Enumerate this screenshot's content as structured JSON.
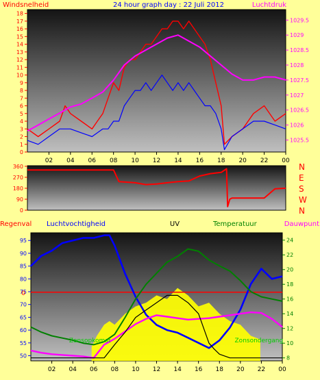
{
  "chart_data": [
    {
      "type": "line",
      "title": "24 hour graph day : 22 Juli 2012",
      "left_label": "Windsnelheid",
      "right_label": "Luchtdruk",
      "x_ticks": [
        "02",
        "04",
        "06",
        "08",
        "10",
        "12",
        "14",
        "16",
        "18",
        "20",
        "22",
        "00"
      ],
      "x_range_hours": [
        0,
        24
      ],
      "y_left_ticks": [
        "0",
        "1",
        "2",
        "3",
        "4",
        "5",
        "6",
        "7",
        "8",
        "9",
        "10",
        "11",
        "12",
        "13",
        "14",
        "15",
        "16",
        "17",
        "18"
      ],
      "y_left_range": [
        0,
        18.5
      ],
      "y_right_ticks": [
        "1025.5",
        "1026",
        "1026.5",
        "1027",
        "1027.5",
        "1028",
        "1028.5",
        "1029",
        "1029.5"
      ],
      "y_right_range": [
        1025.1,
        1029.85
      ],
      "series": [
        {
          "color": "#ff0000",
          "x": [
            0,
            1,
            2,
            3,
            3.5,
            4,
            5,
            6,
            6.5,
            7,
            7.5,
            8,
            8.5,
            9,
            9.5,
            10,
            10.5,
            11,
            11.5,
            12,
            12.5,
            13,
            13.5,
            14,
            14.5,
            15,
            15.5,
            16,
            16.5,
            17,
            17.5,
            18,
            18.3,
            19,
            20,
            21,
            22,
            23,
            24
          ],
          "y": [
            3,
            2,
            3,
            4,
            6,
            5,
            4,
            3,
            4,
            5,
            7,
            9,
            8,
            11,
            12,
            12,
            13,
            14,
            14,
            15,
            16,
            16,
            17,
            17,
            16,
            17,
            16,
            15,
            14,
            12,
            9,
            6,
            1,
            2,
            3,
            5,
            6,
            4,
            5
          ]
        },
        {
          "color": "#0000ff",
          "x": [
            0,
            1,
            2,
            3,
            4,
            5,
            6,
            7,
            7.5,
            8,
            8.5,
            9,
            9.5,
            10,
            10.5,
            11,
            11.5,
            12,
            12.5,
            13,
            13.5,
            14,
            14.5,
            15,
            15.5,
            16,
            16.5,
            17,
            17.5,
            18,
            18.3,
            19,
            20,
            21,
            22,
            23,
            24
          ],
          "y": [
            1.5,
            1,
            2,
            3,
            3,
            2.5,
            2,
            3,
            3,
            4,
            4,
            6,
            7,
            8,
            8,
            9,
            8,
            9,
            10,
            9,
            8,
            9,
            8,
            9,
            8,
            7,
            6,
            6,
            5,
            3,
            0.3,
            2,
            3,
            4,
            4,
            3.5,
            3
          ]
        },
        {
          "color": "#ff00ff",
          "x": [
            0,
            1,
            2,
            3,
            4,
            5,
            6,
            7,
            8,
            9,
            10,
            11,
            12,
            13,
            14,
            15,
            16,
            17,
            18,
            19,
            20,
            21,
            22,
            23,
            24
          ],
          "y": [
            1025.8,
            1026.0,
            1026.2,
            1026.4,
            1026.6,
            1026.7,
            1026.9,
            1027.1,
            1027.5,
            1028.0,
            1028.3,
            1028.5,
            1028.7,
            1028.9,
            1029.0,
            1028.8,
            1028.6,
            1028.3,
            1028.0,
            1027.7,
            1027.5,
            1027.5,
            1027.6,
            1027.6,
            1027.5
          ]
        }
      ]
    },
    {
      "type": "line",
      "x_range_hours": [
        0,
        24
      ],
      "y_ticks": [
        "0",
        "90",
        "180",
        "270",
        "360"
      ],
      "y_range": [
        0,
        365
      ],
      "right_labels": [
        "N",
        "W",
        "S",
        "E",
        "N"
      ],
      "series": [
        {
          "color": "#ff0000",
          "x": [
            0,
            3,
            6,
            8,
            8.5,
            10,
            11,
            12,
            13,
            14,
            15,
            16,
            17,
            18,
            18.5,
            18.6,
            18.8,
            19,
            20,
            22,
            23,
            24
          ],
          "y": [
            330,
            330,
            330,
            330,
            235,
            225,
            210,
            215,
            225,
            235,
            240,
            280,
            300,
            310,
            340,
            30,
            90,
            100,
            100,
            100,
            175,
            180
          ]
        }
      ]
    },
    {
      "type": "line",
      "labels": {
        "regenval": "Regenval",
        "luchtvochtigheid": "Luchtvochtigheid",
        "uv": "UV",
        "temperatuur": "Temperatuur",
        "dauwpunt": "Dauwpunt"
      },
      "annotations": {
        "sunrise": "Zonsopkomst",
        "sunset": "Zonsondergang"
      },
      "sunrise_hour": 5.9,
      "sunset_hour": 21.9,
      "rain_label": "0",
      "x_range_hours": [
        0,
        24
      ],
      "y_left_ticks": [
        "50",
        "55",
        "60",
        "65",
        "70",
        "75",
        "80",
        "85",
        "90",
        "95"
      ],
      "y_left_range": [
        48,
        98
      ],
      "y_right_ticks": [
        "8",
        "10",
        "12",
        "14",
        "16",
        "18",
        "20",
        "22",
        "24"
      ],
      "y_right_range": [
        7.6,
        25
      ],
      "series": [
        {
          "name": "Luchtvochtigheid",
          "color": "#0000ff",
          "x": [
            0,
            1,
            2,
            3,
            4,
            5,
            6,
            7,
            7.5,
            8,
            9,
            10,
            11,
            12,
            13,
            14,
            15,
            16,
            17,
            18,
            19,
            20,
            21,
            22,
            23,
            24
          ],
          "y": [
            85,
            89,
            91,
            94,
            95,
            96,
            96,
            97,
            97,
            93,
            82,
            73,
            66,
            62,
            60,
            59,
            57,
            55,
            53,
            56,
            61,
            68,
            78,
            84,
            80,
            81
          ]
        },
        {
          "name": "Temperatuur",
          "color": "#008000",
          "x": [
            0,
            1,
            2,
            3,
            4,
            5,
            6,
            7,
            8,
            9,
            10,
            11,
            12,
            13,
            14,
            15,
            16,
            17,
            18,
            19,
            20,
            21,
            22,
            23,
            24
          ],
          "y": [
            12.2,
            11.5,
            11.0,
            10.7,
            10.4,
            10.0,
            9.8,
            10.2,
            11.2,
            13.5,
            16.0,
            18.0,
            19.5,
            21.0,
            21.8,
            22.8,
            22.5,
            21.3,
            20.5,
            19.8,
            18.5,
            17.0,
            16.3,
            16.0,
            15.7
          ]
        },
        {
          "name": "Dauwpunt",
          "color": "#ff00ff",
          "x": [
            0,
            1,
            2,
            3,
            4,
            5,
            6,
            7,
            8,
            9,
            10,
            11,
            12,
            13,
            14,
            15,
            16,
            17,
            18,
            19,
            20,
            21,
            22,
            23,
            24
          ],
          "y": [
            9.0,
            8.7,
            8.5,
            8.4,
            8.3,
            8.2,
            8.0,
            9.8,
            10.6,
            11.6,
            12.6,
            13.3,
            13.8,
            13.6,
            13.4,
            13.2,
            13.3,
            13.4,
            13.6,
            13.8,
            14.0,
            14.2,
            14.1,
            13.3,
            12.2
          ]
        },
        {
          "name": "UV",
          "color": "#000000",
          "x": [
            0,
            7,
            8,
            9,
            10,
            11,
            12,
            13,
            14,
            15,
            16,
            17,
            17.5,
            18,
            19,
            24
          ],
          "y": [
            8.0,
            8.0,
            9.8,
            11.5,
            13.5,
            14.5,
            15.5,
            16.5,
            16.5,
            15.5,
            14.0,
            10.0,
            9.2,
            8.5,
            8.0,
            8.0
          ]
        }
      ],
      "solar_fill": {
        "color": "#ffff00",
        "x": [
          5.8,
          6.3,
          7,
          7.5,
          8,
          9,
          10,
          11,
          12,
          13,
          14,
          15,
          16,
          17,
          18,
          19,
          20,
          21,
          21.9
        ],
        "y": [
          9.5,
          11.0,
          12.5,
          13.0,
          12.5,
          14.0,
          15.0,
          15.5,
          16.5,
          16.0,
          17.5,
          16.5,
          15.0,
          15.5,
          14.0,
          13.0,
          12.5,
          11.0,
          10.5
        ]
      }
    }
  ]
}
